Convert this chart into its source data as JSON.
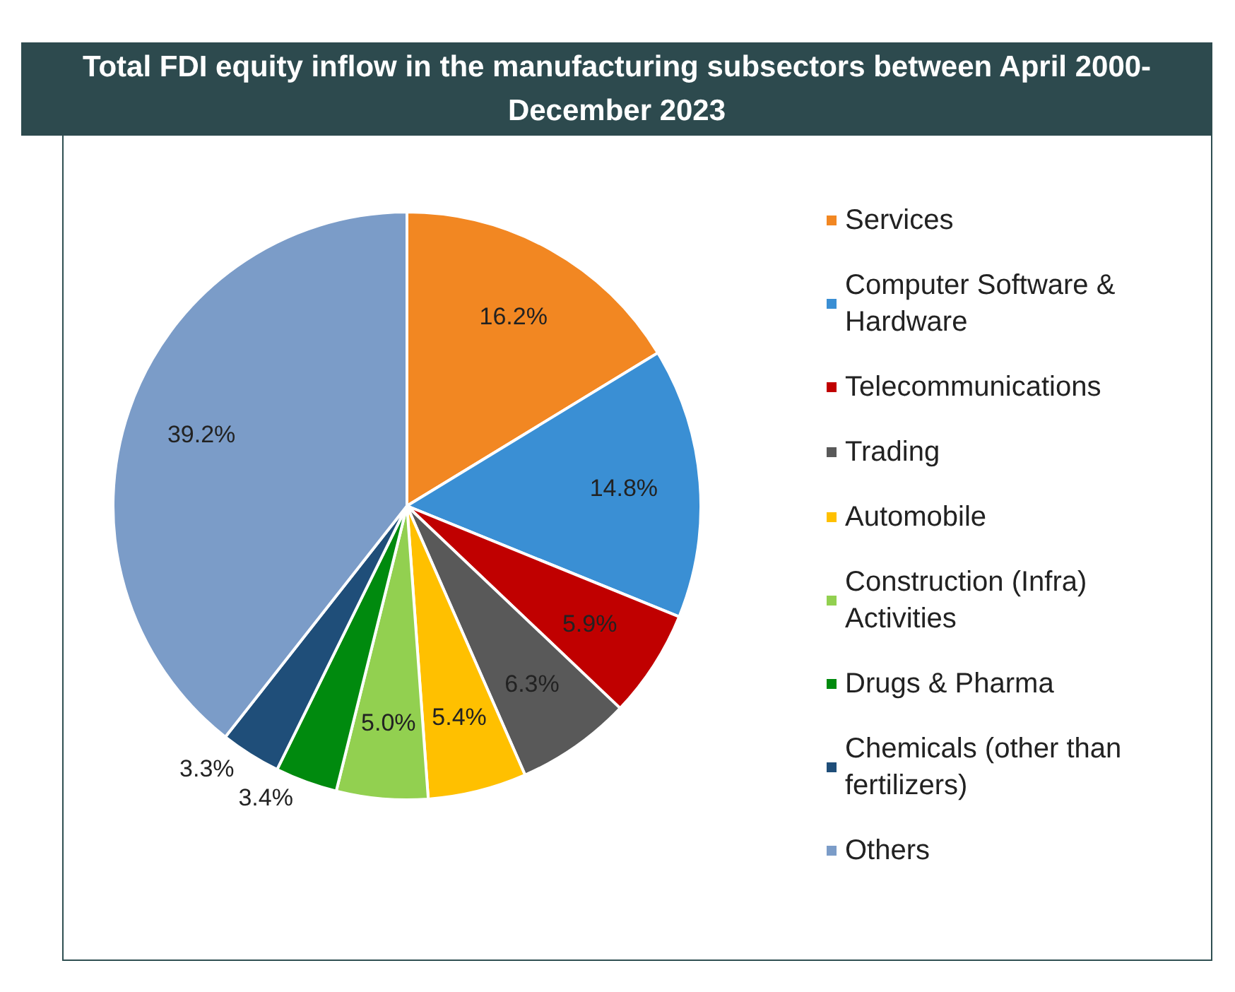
{
  "chart_data": {
    "type": "pie",
    "title": "Total FDI equity inflow in the manufacturing subsectors between April 2000-December 2023",
    "categories": [
      "Services",
      "Computer Software & Hardware",
      "Telecommunications",
      "Trading",
      "Automobile",
      "Construction (Infra) Activities",
      "Drugs & Pharma",
      "Chemicals (other than fertilizers)",
      "Others"
    ],
    "values": [
      16.2,
      14.8,
      5.9,
      6.3,
      5.4,
      5.0,
      3.4,
      3.3,
      39.2
    ],
    "value_labels": [
      "16.2%",
      "14.8%",
      "5.9%",
      "6.3%",
      "5.4%",
      "5.0%",
      "3.4%",
      "3.3%",
      "39.2%"
    ],
    "colors": [
      "#f28722",
      "#3a8fd4",
      "#c00000",
      "#595959",
      "#ffc000",
      "#92d050",
      "#008a0e",
      "#1f4e79",
      "#7b9cc8"
    ],
    "legend": "right"
  }
}
